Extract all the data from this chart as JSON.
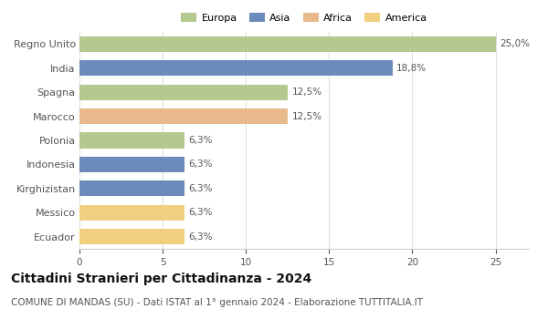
{
  "countries": [
    "Regno Unito",
    "India",
    "Spagna",
    "Marocco",
    "Polonia",
    "Indonesia",
    "Kirghizistan",
    "Messico",
    "Ecuador"
  ],
  "values": [
    25.0,
    18.8,
    12.5,
    12.5,
    6.3,
    6.3,
    6.3,
    6.3,
    6.3
  ],
  "labels": [
    "25,0%",
    "18,8%",
    "12,5%",
    "12,5%",
    "6,3%",
    "6,3%",
    "6,3%",
    "6,3%",
    "6,3%"
  ],
  "colors": [
    "#b5c98e",
    "#6b8cba",
    "#b5c98e",
    "#e8b98a",
    "#b5c98e",
    "#6b8cba",
    "#6b8cba",
    "#f0d080",
    "#f0d080"
  ],
  "legend": [
    {
      "label": "Europa",
      "color": "#b5c98e"
    },
    {
      "label": "Asia",
      "color": "#6b8cba"
    },
    {
      "label": "Africa",
      "color": "#e8b98a"
    },
    {
      "label": "America",
      "color": "#f0d080"
    }
  ],
  "xlim": [
    0,
    27
  ],
  "xticks": [
    0,
    5,
    10,
    15,
    20,
    25
  ],
  "title": "Cittadini Stranieri per Cittadinanza - 2024",
  "subtitle": "COMUNE DI MANDAS (SU) - Dati ISTAT al 1° gennaio 2024 - Elaborazione TUTTITALIA.IT",
  "title_fontsize": 10,
  "subtitle_fontsize": 7.5,
  "background_color": "#ffffff",
  "bar_height": 0.65
}
